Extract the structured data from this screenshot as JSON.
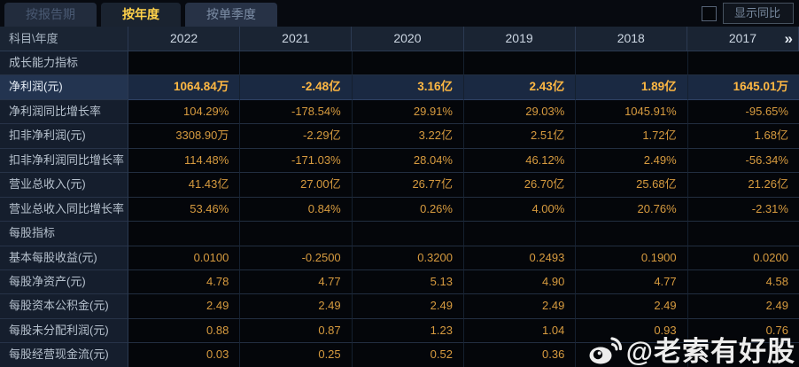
{
  "tabs": [
    {
      "label": "按报告期",
      "active": false
    },
    {
      "label": "按年度",
      "active": true
    },
    {
      "label": "按单季度",
      "active": false
    }
  ],
  "controls": {
    "yoy_checkbox_checked": false,
    "show_yoy_label": "显示同比"
  },
  "table": {
    "corner_label": "科目\\年度",
    "years": [
      "2022",
      "2021",
      "2020",
      "2019",
      "2018",
      "2017"
    ],
    "more_icon": "»",
    "rows": [
      {
        "type": "section",
        "label": "成长能力指标",
        "values": [
          "",
          "",
          "",
          "",
          "",
          ""
        ]
      },
      {
        "type": "data",
        "highlight": true,
        "label": "净利润(元)",
        "values": [
          "1064.84万",
          "-2.48亿",
          "3.16亿",
          "2.43亿",
          "1.89亿",
          "1645.01万"
        ]
      },
      {
        "type": "data",
        "label": "净利润同比增长率",
        "values": [
          "104.29%",
          "-178.54%",
          "29.91%",
          "29.03%",
          "1045.91%",
          "-95.65%"
        ]
      },
      {
        "type": "data",
        "label": "扣非净利润(元)",
        "values": [
          "3308.90万",
          "-2.29亿",
          "3.22亿",
          "2.51亿",
          "1.72亿",
          "1.68亿"
        ]
      },
      {
        "type": "data",
        "label": "扣非净利润同比增长率",
        "values": [
          "114.48%",
          "-171.03%",
          "28.04%",
          "46.12%",
          "2.49%",
          "-56.34%"
        ]
      },
      {
        "type": "data",
        "label": "营业总收入(元)",
        "values": [
          "41.43亿",
          "27.00亿",
          "26.77亿",
          "26.70亿",
          "25.68亿",
          "21.26亿"
        ]
      },
      {
        "type": "data",
        "label": "营业总收入同比增长率",
        "values": [
          "53.46%",
          "0.84%",
          "0.26%",
          "4.00%",
          "20.76%",
          "-2.31%"
        ]
      },
      {
        "type": "section",
        "label": "每股指标",
        "values": [
          "",
          "",
          "",
          "",
          "",
          ""
        ]
      },
      {
        "type": "data",
        "label": "基本每股收益(元)",
        "values": [
          "0.0100",
          "-0.2500",
          "0.3200",
          "0.2493",
          "0.1900",
          "0.0200"
        ]
      },
      {
        "type": "data",
        "label": "每股净资产(元)",
        "values": [
          "4.78",
          "4.77",
          "5.13",
          "4.90",
          "4.77",
          "4.58"
        ]
      },
      {
        "type": "data",
        "label": "每股资本公积金(元)",
        "values": [
          "2.49",
          "2.49",
          "2.49",
          "2.49",
          "2.49",
          "2.49"
        ]
      },
      {
        "type": "data",
        "label": "每股未分配利润(元)",
        "values": [
          "0.88",
          "0.87",
          "1.23",
          "1.04",
          "0.93",
          "0.76"
        ]
      },
      {
        "type": "data",
        "label": "每股经营现金流(元)",
        "values": [
          "0.03",
          "0.25",
          "0.52",
          "0.36",
          "",
          ""
        ]
      }
    ]
  },
  "watermark": {
    "icon": "weibo-icon",
    "text": "@老索有好股"
  },
  "colors": {
    "value_gold": "#d79b3f",
    "highlight_value_gold": "#ffb843",
    "active_tab_text": "#ffd24a",
    "label_text": "#b6c1cd",
    "header_bg": "#1a2433",
    "highlight_row_bg": "#1a2942",
    "watermark_white": "#ededed"
  }
}
